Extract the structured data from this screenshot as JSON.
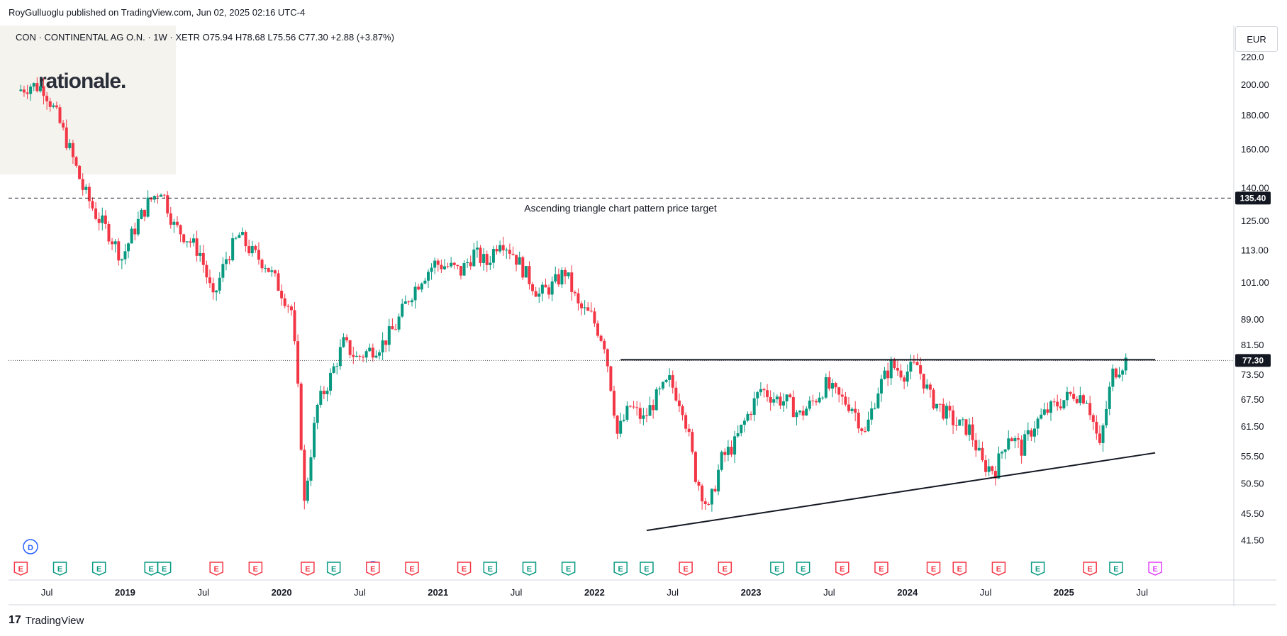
{
  "header": {
    "published": "RoyGulluoglu published on TradingView.com, Jun 02, 2025 02:16 UTC-4",
    "symbol_line": "CON · CONTINENTAL AG O.N. · 1W · XETR   O75.94  H78.68  L75.56  C77.30  +2.88 (+3.87%)"
  },
  "logo": {
    "text": "rationale."
  },
  "currency": "EUR",
  "footer": {
    "brand": "TradingView",
    "mark": "17"
  },
  "colors": {
    "up": "#089981",
    "down": "#f23645",
    "grid": "#ffffff",
    "line": "#131722",
    "event_earnings": "#f23645",
    "event_div": "#2962ff"
  },
  "chart_data": {
    "type": "candlestick",
    "symbol": "CON",
    "timeframe": "1W",
    "exchange": "XETR",
    "last": {
      "open": 75.94,
      "high": 78.68,
      "low": 75.56,
      "close": 77.3,
      "change": "+2.88",
      "change_pct": "+3.87%"
    },
    "y_scale": "log",
    "ylim": [
      39,
      226
    ],
    "y_ticks": [
      "220.0",
      "200.00",
      "180.00",
      "160.00",
      "140.00",
      "125.00",
      "113.00",
      "101.00",
      "89.00",
      "81.50",
      "73.50",
      "67.50",
      "61.50",
      "55.50",
      "50.50",
      "45.50",
      "41.50"
    ],
    "x_ticks": [
      "Jul",
      "2019",
      "Jul",
      "2020",
      "Jul",
      "2021",
      "Jul",
      "2022",
      "Jul",
      "2023",
      "Jul",
      "2024",
      "Jul",
      "2025",
      "Jul"
    ],
    "price_labels": [
      {
        "value": 135.4,
        "label": "135.40"
      },
      {
        "value": 77.3,
        "label": "77.30"
      }
    ],
    "annotation": {
      "text": "Ascending triangle chart pattern price target",
      "price": 135.4
    },
    "resistance_line": {
      "price": 77.5,
      "from": "2022-03",
      "to": "2025-08"
    },
    "support_line": {
      "from": {
        "date": "2022-05",
        "price": 43.0
      },
      "to": {
        "date": "2025-08",
        "price": 56.2
      }
    },
    "series": [
      {
        "date": "2018-05",
        "close": 196
      },
      {
        "date": "2018-06",
        "close": 200
      },
      {
        "date": "2018-07",
        "close": 198
      },
      {
        "date": "2018-08",
        "close": 180
      },
      {
        "date": "2018-09",
        "close": 160
      },
      {
        "date": "2018-10",
        "close": 140
      },
      {
        "date": "2018-11",
        "close": 128
      },
      {
        "date": "2018-12",
        "close": 120
      },
      {
        "date": "2019-01",
        "close": 110
      },
      {
        "date": "2019-02",
        "close": 122
      },
      {
        "date": "2019-03",
        "close": 133
      },
      {
        "date": "2019-04",
        "close": 140
      },
      {
        "date": "2019-05",
        "close": 123
      },
      {
        "date": "2019-06",
        "close": 118
      },
      {
        "date": "2019-07",
        "close": 112
      },
      {
        "date": "2019-08",
        "close": 95
      },
      {
        "date": "2019-09",
        "close": 110
      },
      {
        "date": "2019-10",
        "close": 119
      },
      {
        "date": "2019-11",
        "close": 112
      },
      {
        "date": "2019-12",
        "close": 108
      },
      {
        "date": "2020-01",
        "close": 100
      },
      {
        "date": "2020-02",
        "close": 92
      },
      {
        "date": "2020-03",
        "close": 47
      },
      {
        "date": "2020-04",
        "close": 66
      },
      {
        "date": "2020-05",
        "close": 73
      },
      {
        "date": "2020-06",
        "close": 82
      },
      {
        "date": "2020-07",
        "close": 78
      },
      {
        "date": "2020-08",
        "close": 80
      },
      {
        "date": "2020-09",
        "close": 82
      },
      {
        "date": "2020-10",
        "close": 87
      },
      {
        "date": "2020-11",
        "close": 96
      },
      {
        "date": "2020-12",
        "close": 103
      },
      {
        "date": "2021-01",
        "close": 108
      },
      {
        "date": "2021-02",
        "close": 107
      },
      {
        "date": "2021-03",
        "close": 105
      },
      {
        "date": "2021-04",
        "close": 112
      },
      {
        "date": "2021-05",
        "close": 108
      },
      {
        "date": "2021-06",
        "close": 118
      },
      {
        "date": "2021-07",
        "close": 112
      },
      {
        "date": "2021-08",
        "close": 104
      },
      {
        "date": "2021-09",
        "close": 97
      },
      {
        "date": "2021-10",
        "close": 100
      },
      {
        "date": "2021-11",
        "close": 105
      },
      {
        "date": "2021-12",
        "close": 93
      },
      {
        "date": "2022-01",
        "close": 90
      },
      {
        "date": "2022-02",
        "close": 82
      },
      {
        "date": "2022-03",
        "close": 60
      },
      {
        "date": "2022-04",
        "close": 66
      },
      {
        "date": "2022-05",
        "close": 63
      },
      {
        "date": "2022-06",
        "close": 68
      },
      {
        "date": "2022-07",
        "close": 72
      },
      {
        "date": "2022-08",
        "close": 66
      },
      {
        "date": "2022-09",
        "close": 52
      },
      {
        "date": "2022-10",
        "close": 46
      },
      {
        "date": "2022-11",
        "close": 55
      },
      {
        "date": "2022-12",
        "close": 58
      },
      {
        "date": "2023-01",
        "close": 64
      },
      {
        "date": "2023-02",
        "close": 70
      },
      {
        "date": "2023-03",
        "close": 68
      },
      {
        "date": "2023-04",
        "close": 67
      },
      {
        "date": "2023-05",
        "close": 64
      },
      {
        "date": "2023-06",
        "close": 67
      },
      {
        "date": "2023-07",
        "close": 71
      },
      {
        "date": "2023-08",
        "close": 68
      },
      {
        "date": "2023-09",
        "close": 66
      },
      {
        "date": "2023-10",
        "close": 60
      },
      {
        "date": "2023-11",
        "close": 70
      },
      {
        "date": "2023-12",
        "close": 76
      },
      {
        "date": "2024-01",
        "close": 74
      },
      {
        "date": "2024-02",
        "close": 76
      },
      {
        "date": "2024-03",
        "close": 68
      },
      {
        "date": "2024-04",
        "close": 65
      },
      {
        "date": "2024-05",
        "close": 62
      },
      {
        "date": "2024-06",
        "close": 61
      },
      {
        "date": "2024-07",
        "close": 54
      },
      {
        "date": "2024-08",
        "close": 53
      },
      {
        "date": "2024-09",
        "close": 60
      },
      {
        "date": "2024-10",
        "close": 57
      },
      {
        "date": "2024-11",
        "close": 62
      },
      {
        "date": "2024-12",
        "close": 65
      },
      {
        "date": "2025-01",
        "close": 67
      },
      {
        "date": "2025-02",
        "close": 69
      },
      {
        "date": "2025-03",
        "close": 68
      },
      {
        "date": "2025-04",
        "close": 57
      },
      {
        "date": "2025-05",
        "close": 74
      },
      {
        "date": "2025-06",
        "close": 77.3
      }
    ],
    "events": [
      {
        "date": "2018-05",
        "type": "E",
        "kind": "earnings"
      },
      {
        "date": "2018-08",
        "type": "E",
        "kind": "earnings-up"
      },
      {
        "date": "2018-11",
        "type": "E",
        "kind": "earnings-up"
      },
      {
        "date": "2019-03",
        "type": "E",
        "kind": "earnings-up"
      },
      {
        "date": "2019-04",
        "type": "E",
        "kind": "earnings-up"
      },
      {
        "date": "2019-08",
        "type": "E",
        "kind": "earnings"
      },
      {
        "date": "2019-11",
        "type": "E",
        "kind": "earnings"
      },
      {
        "date": "2020-03",
        "type": "E",
        "kind": "earnings"
      },
      {
        "date": "2020-05",
        "type": "E",
        "kind": "earnings-up"
      },
      {
        "date": "2020-08",
        "type": "D",
        "kind": "dividend"
      },
      {
        "date": "2020-08",
        "type": "E",
        "kind": "earnings"
      },
      {
        "date": "2020-11",
        "type": "E",
        "kind": "earnings"
      },
      {
        "date": "2021-03",
        "type": "E",
        "kind": "earnings"
      },
      {
        "date": "2021-05",
        "type": "E",
        "kind": "earnings-up"
      },
      {
        "date": "2021-08",
        "type": "E",
        "kind": "earnings-up"
      },
      {
        "date": "2021-11",
        "type": "E",
        "kind": "earnings-up"
      },
      {
        "date": "2022-03",
        "type": "E",
        "kind": "earnings-up"
      },
      {
        "date": "2022-05",
        "type": "E",
        "kind": "earnings-up"
      },
      {
        "date": "2022-08",
        "type": "E",
        "kind": "earnings"
      },
      {
        "date": "2022-11",
        "type": "E",
        "kind": "earnings"
      },
      {
        "date": "2023-03",
        "type": "E",
        "kind": "earnings-up"
      },
      {
        "date": "2023-05",
        "type": "E",
        "kind": "earnings-up"
      },
      {
        "date": "2023-08",
        "type": "E",
        "kind": "earnings"
      },
      {
        "date": "2023-11",
        "type": "E",
        "kind": "earnings"
      },
      {
        "date": "2024-03",
        "type": "E",
        "kind": "earnings"
      },
      {
        "date": "2024-05",
        "type": "E",
        "kind": "earnings"
      },
      {
        "date": "2024-08",
        "type": "E",
        "kind": "earnings"
      },
      {
        "date": "2024-11",
        "type": "E",
        "kind": "earnings-up"
      },
      {
        "date": "2025-03",
        "type": "E",
        "kind": "earnings"
      },
      {
        "date": "2025-05",
        "type": "E",
        "kind": "earnings-up"
      },
      {
        "date": "2025-08",
        "type": "E",
        "kind": "earnings-future"
      }
    ],
    "dividend_marker": {
      "type": "D"
    }
  }
}
